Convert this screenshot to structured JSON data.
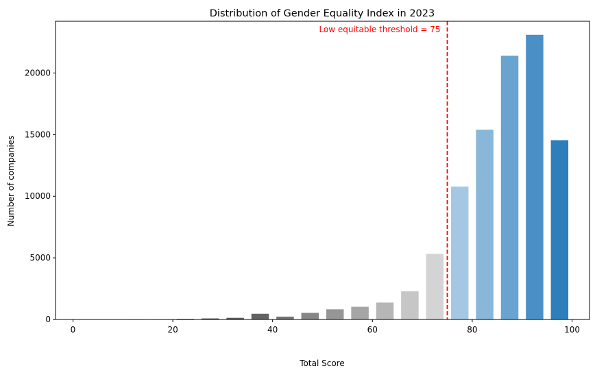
{
  "chart_data": {
    "type": "bar",
    "title": "Distribution of Gender Equality Index in 2023",
    "xlabel": "Total Score",
    "ylabel": "Number of companies",
    "xlim": [
      -3.5,
      103.5
    ],
    "ylim": [
      0,
      24200
    ],
    "xticks": [
      0,
      20,
      40,
      60,
      80,
      100
    ],
    "yticks": [
      0,
      5000,
      10000,
      15000,
      20000
    ],
    "grid": false,
    "bars": [
      {
        "x": 2.5,
        "value": 0,
        "color": "#000000"
      },
      {
        "x": 7.5,
        "value": 0,
        "color": "#060606"
      },
      {
        "x": 12.5,
        "value": 30,
        "color": "#111111"
      },
      {
        "x": 17.5,
        "value": 30,
        "color": "#222222"
      },
      {
        "x": 22.5,
        "value": 50,
        "color": "#333333"
      },
      {
        "x": 27.5,
        "value": 80,
        "color": "#444444"
      },
      {
        "x": 32.5,
        "value": 130,
        "color": "#555555"
      },
      {
        "x": 37.5,
        "value": 460,
        "color": "#636363"
      },
      {
        "x": 42.5,
        "value": 230,
        "color": "#737373"
      },
      {
        "x": 47.5,
        "value": 540,
        "color": "#868686"
      },
      {
        "x": 52.5,
        "value": 820,
        "color": "#969696"
      },
      {
        "x": 57.5,
        "value": 1030,
        "color": "#a5a5a5"
      },
      {
        "x": 62.5,
        "value": 1370,
        "color": "#b6b6b6"
      },
      {
        "x": 67.5,
        "value": 2290,
        "color": "#c6c6c6"
      },
      {
        "x": 72.5,
        "value": 5330,
        "color": "#d4d4d4"
      },
      {
        "x": 77.5,
        "value": 10780,
        "color": "#a6c7e3"
      },
      {
        "x": 82.5,
        "value": 15400,
        "color": "#88b7da"
      },
      {
        "x": 87.5,
        "value": 21400,
        "color": "#69a3d0"
      },
      {
        "x": 92.5,
        "value": 23100,
        "color": "#4a90c6"
      },
      {
        "x": 97.5,
        "value": 14550,
        "color": "#2e7ebb"
      }
    ],
    "threshold": {
      "x": 75,
      "label": "Low equitable threshold = 75",
      "color": "#ff0000",
      "style": "dashed"
    }
  }
}
